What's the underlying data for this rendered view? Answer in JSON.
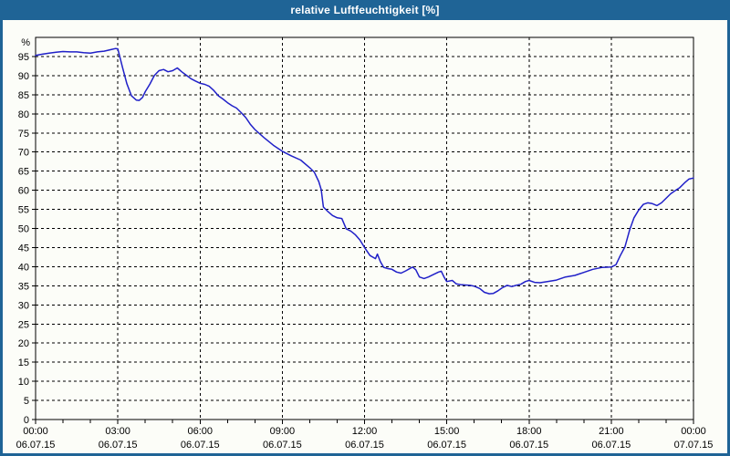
{
  "window": {
    "title": "relative Luftfeuchtigkeit [%]",
    "frame_color": "#1F6496",
    "title_text_color": "#FFFFFF",
    "content_bg": "#FCFDF8"
  },
  "chart_data": {
    "type": "line",
    "title": "relative Luftfeuchtigkeit [%]",
    "ylabel": "%",
    "xlabel": "",
    "ylim": [
      0,
      100
    ],
    "ytick_values": [
      0,
      5,
      10,
      15,
      20,
      25,
      30,
      35,
      40,
      45,
      50,
      55,
      60,
      65,
      70,
      75,
      80,
      85,
      90,
      95
    ],
    "xlim_hours": [
      0,
      24
    ],
    "minor_tick_hours": 1,
    "grid": "dashed horizontal and vertical, black",
    "grid_color": "#000000",
    "line_color": "#2020C8",
    "legend": "none",
    "xticks": [
      {
        "hour": 0,
        "time": "00:00",
        "date": "06.07.15"
      },
      {
        "hour": 3,
        "time": "03:00",
        "date": "06.07.15"
      },
      {
        "hour": 6,
        "time": "06:00",
        "date": "06.07.15"
      },
      {
        "hour": 9,
        "time": "09:00",
        "date": "06.07.15"
      },
      {
        "hour": 12,
        "time": "12:00",
        "date": "06.07.15"
      },
      {
        "hour": 15,
        "time": "15:00",
        "date": "06.07.15"
      },
      {
        "hour": 18,
        "time": "18:00",
        "date": "06.07.15"
      },
      {
        "hour": 21,
        "time": "21:00",
        "date": "06.07.15"
      },
      {
        "hour": 24,
        "time": "00:00",
        "date": "07.07.15"
      }
    ],
    "series": [
      {
        "name": "relative Luftfeuchtigkeit",
        "points": [
          [
            0.0,
            95.3
          ],
          [
            0.25,
            95.6
          ],
          [
            0.5,
            95.9
          ],
          [
            0.75,
            96.1
          ],
          [
            1.0,
            96.3
          ],
          [
            1.25,
            96.2
          ],
          [
            1.5,
            96.2
          ],
          [
            1.75,
            96.0
          ],
          [
            2.0,
            95.9
          ],
          [
            2.25,
            96.2
          ],
          [
            2.5,
            96.4
          ],
          [
            2.75,
            96.8
          ],
          [
            2.92,
            97.1
          ],
          [
            3.0,
            97.0
          ],
          [
            3.17,
            92.2
          ],
          [
            3.33,
            87.9
          ],
          [
            3.5,
            84.7
          ],
          [
            3.67,
            83.6
          ],
          [
            3.78,
            83.5
          ],
          [
            3.9,
            84.3
          ],
          [
            4.0,
            85.8
          ],
          [
            4.17,
            87.8
          ],
          [
            4.33,
            90.0
          ],
          [
            4.5,
            91.3
          ],
          [
            4.67,
            91.6
          ],
          [
            4.83,
            91.0
          ],
          [
            5.0,
            91.3
          ],
          [
            5.17,
            92.0
          ],
          [
            5.33,
            91.0
          ],
          [
            5.5,
            90.1
          ],
          [
            5.67,
            89.2
          ],
          [
            5.83,
            88.6
          ],
          [
            6.0,
            88.0
          ],
          [
            6.17,
            87.7
          ],
          [
            6.33,
            87.2
          ],
          [
            6.5,
            86.1
          ],
          [
            6.67,
            84.7
          ],
          [
            6.83,
            83.9
          ],
          [
            7.0,
            82.9
          ],
          [
            7.17,
            82.1
          ],
          [
            7.33,
            81.5
          ],
          [
            7.5,
            80.3
          ],
          [
            7.67,
            79.0
          ],
          [
            7.83,
            77.3
          ],
          [
            8.0,
            75.9
          ],
          [
            8.33,
            73.8
          ],
          [
            8.67,
            71.8
          ],
          [
            9.0,
            70.2
          ],
          [
            9.33,
            69.0
          ],
          [
            9.67,
            67.9
          ],
          [
            10.0,
            65.9
          ],
          [
            10.17,
            64.7
          ],
          [
            10.33,
            62.3
          ],
          [
            10.42,
            60.2
          ],
          [
            10.5,
            55.6
          ],
          [
            10.67,
            54.4
          ],
          [
            10.83,
            53.4
          ],
          [
            11.0,
            52.8
          ],
          [
            11.17,
            52.6
          ],
          [
            11.33,
            49.9
          ],
          [
            11.5,
            49.3
          ],
          [
            11.67,
            48.3
          ],
          [
            11.83,
            47.0
          ],
          [
            12.0,
            45.0
          ],
          [
            12.2,
            42.9
          ],
          [
            12.4,
            42.1
          ],
          [
            12.47,
            43.3
          ],
          [
            12.58,
            41.3
          ],
          [
            12.7,
            39.8
          ],
          [
            12.85,
            39.5
          ],
          [
            13.0,
            39.3
          ],
          [
            13.17,
            38.6
          ],
          [
            13.33,
            38.3
          ],
          [
            13.5,
            38.9
          ],
          [
            13.75,
            39.9
          ],
          [
            13.87,
            39.2
          ],
          [
            14.0,
            37.3
          ],
          [
            14.17,
            36.9
          ],
          [
            14.33,
            37.3
          ],
          [
            14.5,
            37.9
          ],
          [
            14.7,
            38.6
          ],
          [
            14.8,
            38.8
          ],
          [
            14.9,
            37.3
          ],
          [
            15.0,
            36.1
          ],
          [
            15.2,
            36.4
          ],
          [
            15.35,
            35.5
          ],
          [
            15.5,
            35.3
          ],
          [
            15.85,
            35.1
          ],
          [
            16.0,
            34.9
          ],
          [
            16.2,
            34.3
          ],
          [
            16.37,
            33.3
          ],
          [
            16.55,
            32.9
          ],
          [
            16.7,
            33.0
          ],
          [
            16.87,
            33.7
          ],
          [
            17.03,
            34.5
          ],
          [
            17.2,
            35.1
          ],
          [
            17.37,
            34.8
          ],
          [
            17.53,
            35.1
          ],
          [
            17.7,
            35.4
          ],
          [
            17.87,
            36.1
          ],
          [
            18.0,
            36.4
          ],
          [
            18.2,
            35.9
          ],
          [
            18.4,
            35.8
          ],
          [
            18.67,
            36.1
          ],
          [
            19.0,
            36.5
          ],
          [
            19.33,
            37.3
          ],
          [
            19.67,
            37.7
          ],
          [
            20.0,
            38.5
          ],
          [
            20.33,
            39.3
          ],
          [
            20.67,
            39.8
          ],
          [
            21.0,
            39.9
          ],
          [
            21.17,
            40.5
          ],
          [
            21.33,
            42.9
          ],
          [
            21.5,
            45.2
          ],
          [
            21.67,
            49.6
          ],
          [
            21.83,
            52.8
          ],
          [
            22.0,
            54.8
          ],
          [
            22.17,
            56.3
          ],
          [
            22.33,
            56.7
          ],
          [
            22.5,
            56.5
          ],
          [
            22.67,
            56.0
          ],
          [
            22.83,
            56.7
          ],
          [
            23.0,
            57.9
          ],
          [
            23.17,
            59.1
          ],
          [
            23.33,
            59.9
          ],
          [
            23.5,
            60.7
          ],
          [
            23.67,
            61.9
          ],
          [
            23.83,
            62.9
          ],
          [
            24.0,
            63.2
          ]
        ]
      }
    ]
  }
}
